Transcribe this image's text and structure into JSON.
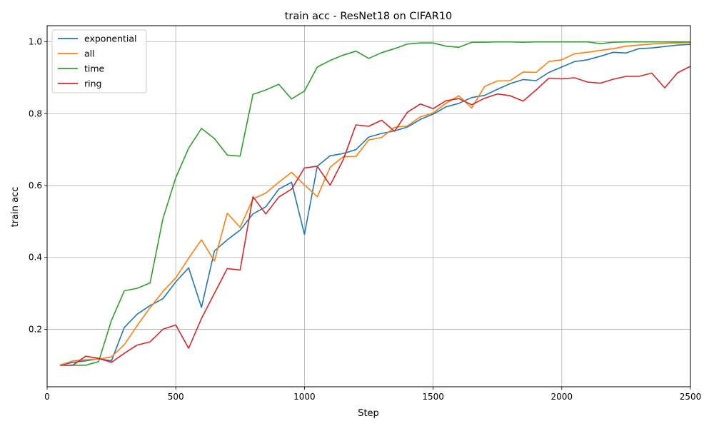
{
  "chart_data": {
    "type": "line",
    "title": "train acc - ResNet18 on CIFAR10",
    "xlabel": "Step",
    "ylabel": "train acc",
    "xlim": [
      0,
      2500
    ],
    "ylim": [
      0.04,
      1.045
    ],
    "xticks": [
      0,
      500,
      1000,
      1500,
      2000,
      2500
    ],
    "yticks": [
      0.2,
      0.4,
      0.6,
      0.8,
      1.0
    ],
    "xtick_labels": [
      "0",
      "500",
      "1000",
      "1500",
      "2000",
      "2500"
    ],
    "ytick_labels": [
      "0.2",
      "0.4",
      "0.6",
      "0.8",
      "1.0"
    ],
    "grid": true,
    "legend_position": "top-left",
    "x": [
      50,
      100,
      150,
      200,
      250,
      300,
      350,
      400,
      450,
      500,
      550,
      600,
      650,
      700,
      750,
      800,
      850,
      900,
      950,
      1000,
      1050,
      1100,
      1150,
      1200,
      1250,
      1300,
      1350,
      1400,
      1450,
      1500,
      1550,
      1600,
      1650,
      1700,
      1750,
      1800,
      1850,
      1900,
      1950,
      2000,
      2050,
      2100,
      2150,
      2200,
      2250,
      2300,
      2350,
      2400,
      2450,
      2500
    ],
    "series": [
      {
        "name": "exponential",
        "color": "#1f77b4",
        "values": [
          0.1,
          0.108,
          0.112,
          0.118,
          0.112,
          0.205,
          0.242,
          0.266,
          0.285,
          0.332,
          0.371,
          0.261,
          0.418,
          0.449,
          0.476,
          0.521,
          0.541,
          0.59,
          0.609,
          0.464,
          0.654,
          0.683,
          0.689,
          0.7,
          0.735,
          0.745,
          0.752,
          0.763,
          0.784,
          0.799,
          0.819,
          0.829,
          0.845,
          0.851,
          0.868,
          0.884,
          0.895,
          0.892,
          0.915,
          0.93,
          0.945,
          0.95,
          0.96,
          0.971,
          0.969,
          0.981,
          0.983,
          0.987,
          0.991,
          0.993
        ]
      },
      {
        "name": "all",
        "color": "#ff7f0e",
        "values": [
          0.1,
          0.112,
          0.115,
          0.117,
          0.123,
          0.157,
          0.21,
          0.26,
          0.305,
          0.343,
          0.398,
          0.449,
          0.39,
          0.523,
          0.484,
          0.563,
          0.579,
          0.609,
          0.637,
          0.602,
          0.569,
          0.651,
          0.68,
          0.681,
          0.727,
          0.734,
          0.762,
          0.766,
          0.791,
          0.802,
          0.829,
          0.85,
          0.816,
          0.876,
          0.891,
          0.892,
          0.916,
          0.915,
          0.945,
          0.95,
          0.967,
          0.971,
          0.976,
          0.981,
          0.988,
          0.991,
          0.994,
          0.996,
          0.997,
          0.998
        ]
      },
      {
        "name": "time",
        "color": "#2ca02c",
        "values": [
          0.1,
          0.1,
          0.1,
          0.11,
          0.225,
          0.307,
          0.314,
          0.329,
          0.508,
          0.622,
          0.704,
          0.759,
          0.731,
          0.685,
          0.682,
          0.854,
          0.866,
          0.882,
          0.841,
          0.863,
          0.93,
          0.948,
          0.963,
          0.974,
          0.954,
          0.97,
          0.981,
          0.994,
          0.997,
          0.997,
          0.988,
          0.985,
          0.999,
          0.999,
          1.0,
          1.0,
          0.999,
          1.0,
          1.0,
          1.0,
          1.0,
          1.0,
          0.995,
          0.999,
          1.0,
          1.0,
          1.0,
          1.0,
          1.0,
          1.0
        ]
      },
      {
        "name": "ring",
        "color": "#d62728",
        "values": [
          0.1,
          0.1,
          0.125,
          0.119,
          0.108,
          0.133,
          0.156,
          0.165,
          0.2,
          0.212,
          0.147,
          0.23,
          0.3,
          0.369,
          0.365,
          0.569,
          0.521,
          0.568,
          0.59,
          0.649,
          0.654,
          0.601,
          0.671,
          0.769,
          0.765,
          0.782,
          0.751,
          0.804,
          0.827,
          0.814,
          0.836,
          0.842,
          0.825,
          0.843,
          0.855,
          0.85,
          0.835,
          0.866,
          0.899,
          0.897,
          0.9,
          0.888,
          0.885,
          0.896,
          0.904,
          0.904,
          0.913,
          0.872,
          0.914,
          0.932
        ]
      }
    ]
  }
}
